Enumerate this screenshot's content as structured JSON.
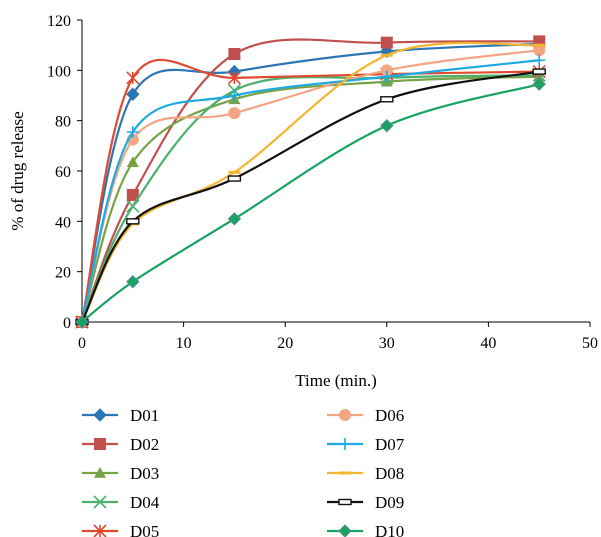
{
  "chart_data": {
    "type": "line",
    "title": "",
    "xlabel": "Time (min.)",
    "ylabel": "% of drug release",
    "xlim": [
      0,
      50
    ],
    "ylim": [
      0,
      120
    ],
    "xticks": [
      0,
      10,
      20,
      30,
      40,
      50
    ],
    "yticks": [
      0,
      20,
      40,
      60,
      80,
      100,
      120
    ],
    "grid": false,
    "legend_position": "bottom",
    "x": [
      0,
      5,
      15,
      30,
      45
    ],
    "series": [
      {
        "name": "D01",
        "values": [
          0,
          90.5,
          99.5,
          107.5,
          110.5
        ],
        "color": "#2e75b6",
        "marker": "diamond"
      },
      {
        "name": "D02",
        "values": [
          0,
          50.5,
          106.5,
          111,
          111.5
        ],
        "color": "#c0504d",
        "marker": "square"
      },
      {
        "name": "D03",
        "values": [
          0,
          63.5,
          88.5,
          95.5,
          97.5
        ],
        "color": "#77a346",
        "marker": "triangle"
      },
      {
        "name": "D04",
        "values": [
          0,
          46,
          92,
          97,
          98
        ],
        "color": "#4caf6b",
        "marker": "x"
      },
      {
        "name": "D05",
        "values": [
          0,
          97,
          97,
          98.5,
          99.5
        ],
        "color": "#e04a2f",
        "marker": "star"
      },
      {
        "name": "D06",
        "values": [
          0,
          72.5,
          83,
          100,
          108
        ],
        "color": "#f4a582",
        "marker": "circle"
      },
      {
        "name": "D07",
        "values": [
          0,
          75.5,
          90,
          97.5,
          104
        ],
        "color": "#1fa9e1",
        "marker": "plus"
      },
      {
        "name": "D08",
        "values": [
          0,
          39,
          59.5,
          106,
          110
        ],
        "color": "#f2b630",
        "marker": "dash"
      },
      {
        "name": "D09",
        "values": [
          0,
          40,
          57,
          88.5,
          99.5
        ],
        "color": "#111111",
        "marker": "rect"
      },
      {
        "name": "D10",
        "values": [
          0,
          16,
          41,
          78,
          94.5
        ],
        "color": "#17a460",
        "marker": "diamond"
      }
    ]
  }
}
